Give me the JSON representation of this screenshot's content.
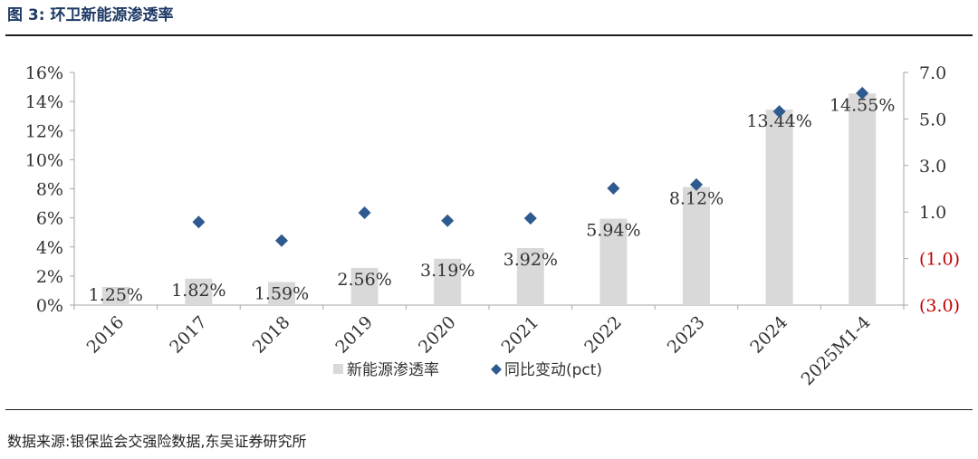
{
  "figure": {
    "title": "图 3:  环卫新能源渗透率",
    "source": "数据来源:银保监会交强险数据,东吴证券研究所"
  },
  "colors": {
    "bar": "#d9d9d9",
    "marker": "#2f5a8f",
    "negative_tick": "#c00000",
    "axis": "#a6a6a6"
  },
  "chart_data": {
    "type": "bar",
    "categories": [
      "2016",
      "2017",
      "2018",
      "2019",
      "2020",
      "2021",
      "2022",
      "2023",
      "2024",
      "2025M1-4"
    ],
    "series": [
      {
        "name": "新能源渗透率",
        "type": "bar",
        "axis": "left",
        "values": [
          1.25,
          1.82,
          1.59,
          2.56,
          3.19,
          3.92,
          5.94,
          8.12,
          13.44,
          14.55
        ],
        "labels": [
          "1.25%",
          "1.82%",
          "1.59%",
          "2.56%",
          "3.19%",
          "3.92%",
          "5.94%",
          "8.12%",
          "13.44%",
          "14.55%"
        ]
      },
      {
        "name": "同比变动(pct)",
        "type": "scatter",
        "axis": "right",
        "values": [
          null,
          0.57,
          -0.23,
          0.97,
          0.63,
          0.73,
          2.02,
          2.18,
          5.32,
          6.11
        ]
      }
    ],
    "y_left": {
      "min": 0,
      "max": 16,
      "step": 2,
      "tick_labels": [
        "0%",
        "2%",
        "4%",
        "6%",
        "8%",
        "10%",
        "12%",
        "14%",
        "16%"
      ]
    },
    "y_right": {
      "min": -3,
      "max": 7,
      "tick_values": [
        -3,
        -1,
        1,
        3,
        5,
        7
      ],
      "tick_labels": [
        "(3.0)",
        "(1.0)",
        "1.0",
        "3.0",
        "5.0",
        "7.0"
      ]
    },
    "grid": false,
    "legend_position": "bottom"
  }
}
